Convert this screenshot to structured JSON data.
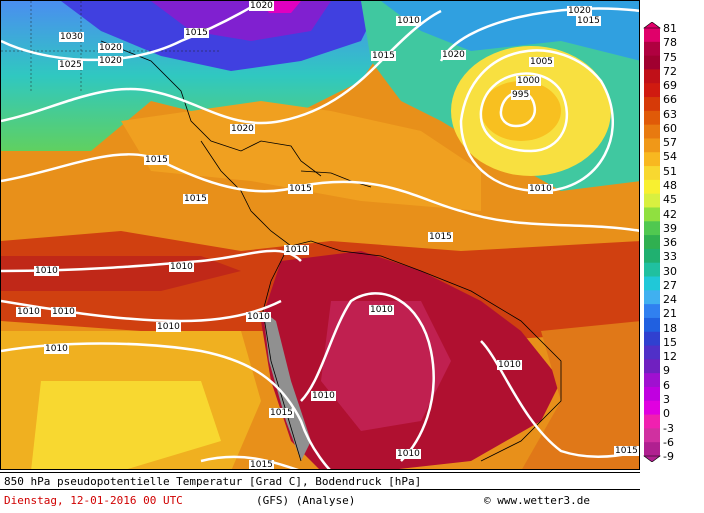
{
  "title": "850 hPa pseudopotentielle Temperatur [Grad C], Bodendruck [hPa]",
  "date_label": "Dienstag, 12-01-2016  00 UTC",
  "model_label": "(GFS)  (Analyse)",
  "copyright": "© www.wetter3.de",
  "colors": {
    "text_date": "#d00000",
    "isobar": "#ffffff"
  },
  "scale_ticks": [
    "81",
    "78",
    "75",
    "72",
    "69",
    "66",
    "63",
    "60",
    "57",
    "54",
    "51",
    "48",
    "45",
    "42",
    "39",
    "36",
    "33",
    "30",
    "27",
    "24",
    "21",
    "18",
    "15",
    "12",
    "9",
    "6",
    "3",
    "0",
    "-3",
    "-6",
    "-9"
  ],
  "scale_colors": [
    "#e0006a",
    "#b00040",
    "#a00030",
    "#c01018",
    "#d01a10",
    "#d63a08",
    "#e05a08",
    "#e87a10",
    "#f09818",
    "#f8b820",
    "#f8d830",
    "#f8f030",
    "#d8f040",
    "#90e040",
    "#50c850",
    "#30b050",
    "#20b070",
    "#20c0a0",
    "#20c8d8",
    "#40b0f0",
    "#3080f0",
    "#2060e0",
    "#3040d0",
    "#5030c8",
    "#7020c0",
    "#a010d0",
    "#c000e0",
    "#e000e0",
    "#f020b0",
    "#d030a0",
    "#b02090"
  ],
  "isobar_labels": [
    "1020",
    "1030",
    "1015",
    "1020",
    "1025",
    "1020",
    "1010",
    "1015",
    "1020",
    "1020",
    "1005",
    "1000",
    "995",
    "1015",
    "1015",
    "1015",
    "1010",
    "1010",
    "1015",
    "1010",
    "1010",
    "1010",
    "1010",
    "1010",
    "1010",
    "1010",
    "1010",
    "1010",
    "1015",
    "1010",
    "1015",
    "1015",
    "1010",
    "1020",
    "1015"
  ],
  "map_description": ""
}
